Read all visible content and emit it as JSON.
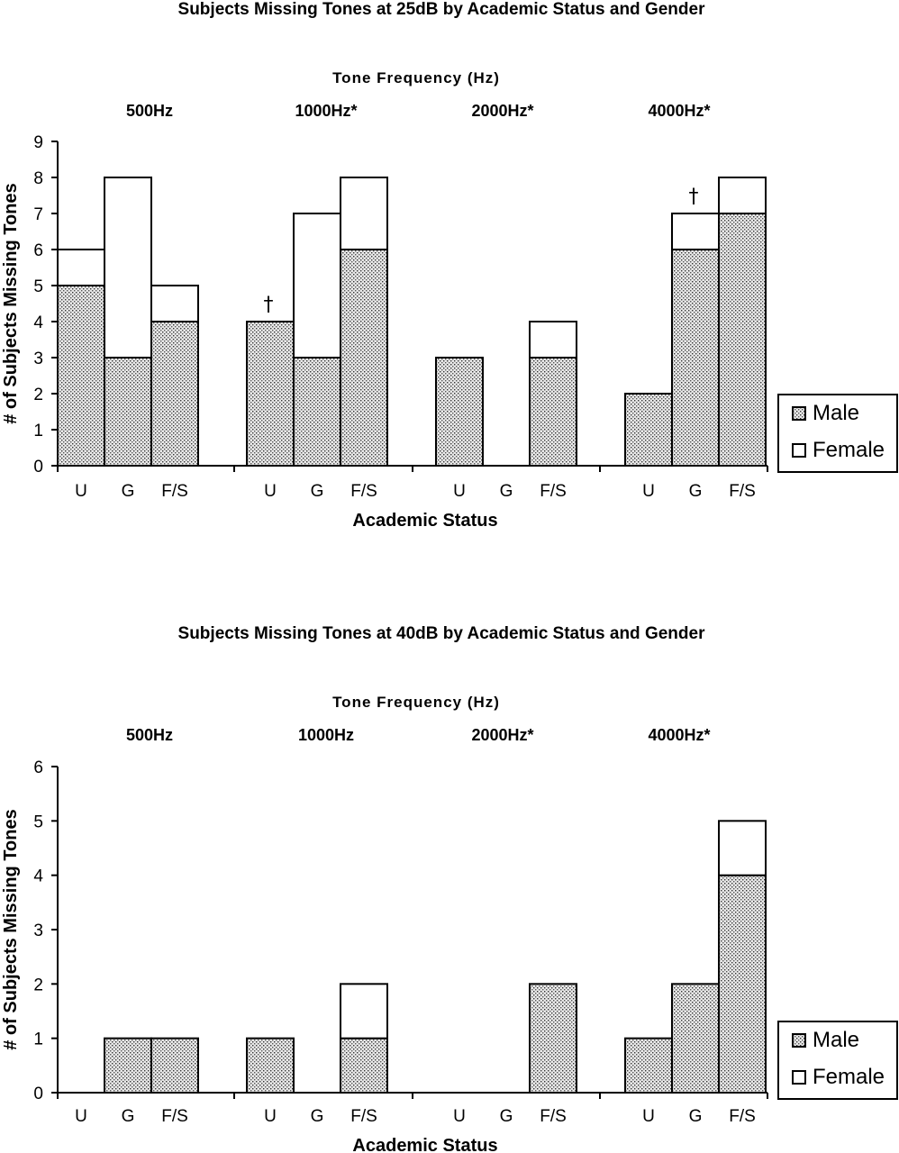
{
  "chart_data": [
    {
      "type": "bar",
      "stacked": true,
      "title": "Subjects Missing Tones at 25dB by Academic Status and Gender",
      "group_axis_label": "Tone Frequency (Hz)",
      "groups": [
        "500Hz",
        "1000Hz*",
        "2000Hz*",
        "4000Hz*"
      ],
      "categories": [
        "U",
        "G",
        "F/S"
      ],
      "xlabel": "Academic Status",
      "ylabel": "# of Subjects Missing Tones",
      "ylim": [
        0,
        9
      ],
      "yticks": [
        0,
        1,
        2,
        3,
        4,
        5,
        6,
        7,
        8,
        9
      ],
      "series": [
        {
          "name": "Male",
          "values": [
            [
              5,
              3,
              4
            ],
            [
              4,
              3,
              6
            ],
            [
              3,
              0,
              3
            ],
            [
              2,
              6,
              7
            ]
          ]
        },
        {
          "name": "Female",
          "values": [
            [
              1,
              5,
              1
            ],
            [
              0,
              4,
              2
            ],
            [
              0,
              0,
              1
            ],
            [
              0,
              1,
              1
            ]
          ]
        }
      ],
      "annotations": [
        {
          "text": "†",
          "group": "1000Hz*",
          "category": "U"
        },
        {
          "text": "†",
          "group": "4000Hz*",
          "category": "G"
        }
      ],
      "legend": "right"
    },
    {
      "type": "bar",
      "stacked": true,
      "title": "Subjects Missing Tones at 40dB by Academic Status and Gender",
      "group_axis_label": "Tone Frequency (Hz)",
      "groups": [
        "500Hz",
        "1000Hz",
        "2000Hz*",
        "4000Hz*"
      ],
      "categories": [
        "U",
        "G",
        "F/S"
      ],
      "xlabel": "Academic Status",
      "ylabel": "# of Subjects Missing Tones",
      "ylim": [
        0,
        6
      ],
      "yticks": [
        0,
        1,
        2,
        3,
        4,
        5,
        6
      ],
      "series": [
        {
          "name": "Male",
          "values": [
            [
              0,
              1,
              1
            ],
            [
              1,
              0,
              1
            ],
            [
              0,
              0,
              2
            ],
            [
              1,
              2,
              4
            ]
          ]
        },
        {
          "name": "Female",
          "values": [
            [
              0,
              0,
              0
            ],
            [
              0,
              0,
              1
            ],
            [
              0,
              0,
              0
            ],
            [
              0,
              0,
              1
            ]
          ]
        }
      ],
      "annotations": [],
      "legend": "right"
    }
  ]
}
